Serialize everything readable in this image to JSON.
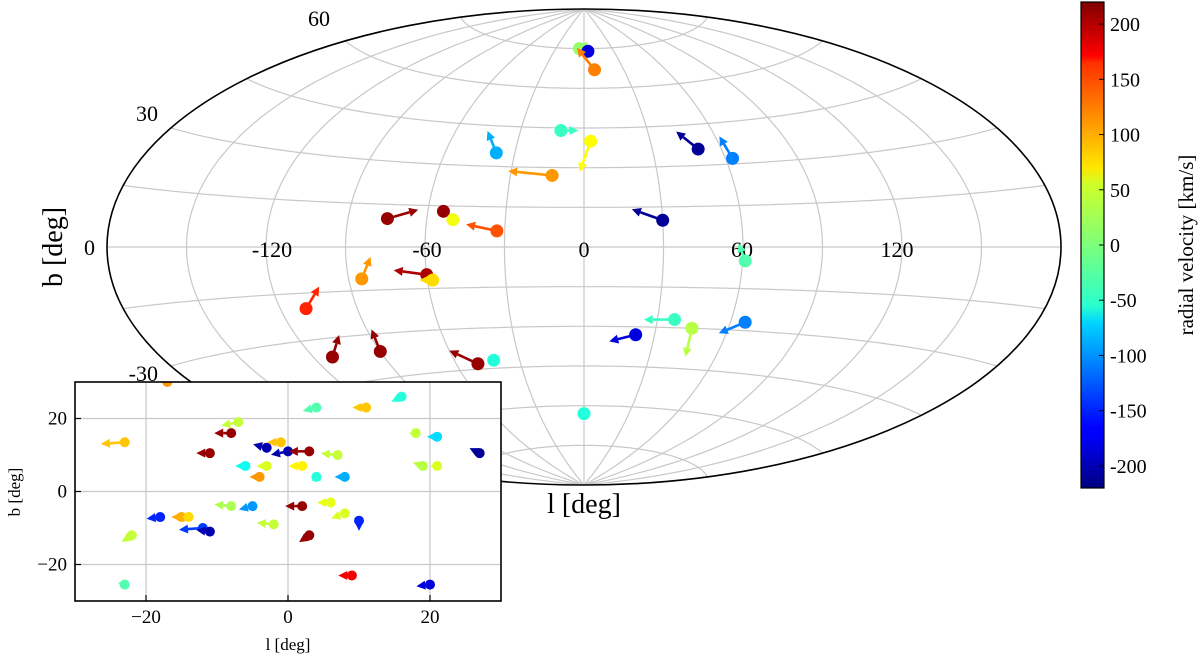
{
  "chart_data": [
    {
      "type": "scatter",
      "name": "main-aitoff",
      "projection": "aitoff",
      "xlabel": "l [deg]",
      "ylabel": "b [deg]",
      "x_ticks": [
        "-120",
        "-60",
        "0",
        "60",
        "120"
      ],
      "y_ticks": [
        "60",
        "30",
        "0",
        "-30"
      ],
      "grid": true,
      "points": [
        {
          "l": -5,
          "b": 75,
          "pml": 4,
          "pmb": 3,
          "rv": 10
        },
        {
          "l": 4,
          "b": 74,
          "pml": 0,
          "pmb": 0,
          "rv": -180
        },
        {
          "l": 8,
          "b": 67,
          "pml": -8,
          "pmb": 10,
          "rv": 110
        },
        {
          "l": -11,
          "b": 44,
          "pml": 8,
          "pmb": 0,
          "rv": -30
        },
        {
          "l": 3,
          "b": 40,
          "pml": -5,
          "pmb": -14,
          "rv": 55
        },
        {
          "l": -38,
          "b": 35,
          "pml": -4,
          "pmb": 10,
          "rv": -90
        },
        {
          "l": 50,
          "b": 36,
          "pml": -10,
          "pmb": 8,
          "rv": -210
        },
        {
          "l": 63,
          "b": 32,
          "pml": -6,
          "pmb": 10,
          "rv": -110
        },
        {
          "l": -13,
          "b": 27,
          "pml": -20,
          "pmb": 2,
          "rv": 100
        },
        {
          "l": -75,
          "b": 10,
          "pml": 14,
          "pmb": 4,
          "rv": 210
        },
        {
          "l": -54,
          "b": 13,
          "pml": 0,
          "pmb": 0,
          "rv": 210
        },
        {
          "l": -50,
          "b": 10,
          "pml": 0,
          "pmb": 0,
          "rv": 50
        },
        {
          "l": -33,
          "b": 6,
          "pml": -14,
          "pmb": 3,
          "rv": 130
        },
        {
          "l": 30,
          "b": 10,
          "pml": -14,
          "pmb": 5,
          "rv": -210
        },
        {
          "l": -85,
          "b": -11,
          "pml": 4,
          "pmb": 10,
          "rv": 100
        },
        {
          "l": -60,
          "b": -10,
          "pml": -15,
          "pmb": 2,
          "rv": 200
        },
        {
          "l": -58,
          "b": -12,
          "pml": -6,
          "pmb": 0,
          "rv": 70
        },
        {
          "l": -110,
          "b": -20,
          "pml": 6,
          "pmb": 10,
          "rv": 150
        },
        {
          "l": -112,
          "b": -36,
          "pml": 3,
          "pmb": 10,
          "rv": 210
        },
        {
          "l": -90,
          "b": -36,
          "pml": -4,
          "pmb": 10,
          "rv": 210
        },
        {
          "l": -50,
          "b": -43,
          "pml": -13,
          "pmb": 6,
          "rv": 210
        },
        {
          "l": -42,
          "b": -42,
          "pml": 0,
          "pmb": 0,
          "rv": -40
        },
        {
          "l": 22,
          "b": -33,
          "pml": -12,
          "pmb": -3,
          "rv": -180
        },
        {
          "l": 37,
          "b": -27,
          "pml": -14,
          "pmb": 0,
          "rv": -30
        },
        {
          "l": 45,
          "b": -30,
          "pml": -3,
          "pmb": -13,
          "rv": 25
        },
        {
          "l": 66,
          "b": -27,
          "pml": -12,
          "pmb": -5,
          "rv": -110
        },
        {
          "l": 61,
          "b": -5,
          "pml": -3,
          "pmb": 8,
          "rv": -20
        },
        {
          "l": 0,
          "b": -63,
          "pml": 0,
          "pmb": 0,
          "rv": -40
        }
      ],
      "colorbar": {
        "label": "radial velocity [km/s]",
        "min": -220,
        "max": 220,
        "ticks": [
          "200",
          "150",
          "100",
          "50",
          "0",
          "-50",
          "-100",
          "-150",
          "-200"
        ],
        "tick_values": [
          200,
          150,
          100,
          50,
          0,
          -50,
          -100,
          -150,
          -200
        ]
      }
    },
    {
      "type": "scatter",
      "name": "inset-zoom",
      "xlabel": "l [deg]",
      "ylabel": "b [deg]",
      "xlim": [
        -30,
        30
      ],
      "ylim": [
        -30,
        30
      ],
      "x_ticks": [
        "−20",
        "0",
        "20"
      ],
      "y_ticks": [
        "20",
        "0",
        "−20"
      ],
      "x_tick_values": [
        -20,
        0,
        20
      ],
      "y_tick_values": [
        20,
        0,
        -20
      ],
      "grid": true,
      "points": [
        {
          "l": -17,
          "b": 30,
          "pml": 0,
          "pmb": 0,
          "rv": 100
        },
        {
          "l": -23,
          "b": 13.5,
          "pml": -7,
          "pmb": -0.5,
          "rv": 80
        },
        {
          "l": -7,
          "b": 19,
          "pml": -5,
          "pmb": -1,
          "rv": 30
        },
        {
          "l": 4,
          "b": 23,
          "pml": -4,
          "pmb": -1,
          "rv": -20
        },
        {
          "l": 11,
          "b": 23,
          "pml": -4,
          "pmb": 0,
          "rv": 80
        },
        {
          "l": 16,
          "b": 26,
          "pml": -3,
          "pmb": -1.5,
          "rv": -40
        },
        {
          "l": 18,
          "b": 16,
          "pml": -2,
          "pmb": 0,
          "rv": 30
        },
        {
          "l": 21,
          "b": 15,
          "pml": -3,
          "pmb": 0,
          "rv": -70
        },
        {
          "l": 27,
          "b": 10.5,
          "pml": -3,
          "pmb": 1.5,
          "rv": -210
        },
        {
          "l": 19,
          "b": 7,
          "pml": -3,
          "pmb": 1,
          "rv": 25
        },
        {
          "l": 21,
          "b": 7,
          "pml": -2,
          "pmb": 0,
          "rv": 40
        },
        {
          "l": -8,
          "b": 16,
          "pml": -5,
          "pmb": 0,
          "rv": 210
        },
        {
          "l": -11,
          "b": 10.5,
          "pml": -4,
          "pmb": 0,
          "rv": 210
        },
        {
          "l": -3,
          "b": 12,
          "pml": -4,
          "pmb": 1,
          "rv": -200
        },
        {
          "l": -1,
          "b": 13.5,
          "pml": -4,
          "pmb": 0,
          "rv": 80
        },
        {
          "l": 0,
          "b": 11,
          "pml": -5,
          "pmb": -1,
          "rv": -200
        },
        {
          "l": 3,
          "b": 11,
          "pml": -6,
          "pmb": 0,
          "rv": 210
        },
        {
          "l": 7,
          "b": 10,
          "pml": -5,
          "pmb": 0.5,
          "rv": 30
        },
        {
          "l": -3,
          "b": 7,
          "pml": -3,
          "pmb": 0,
          "rv": 40
        },
        {
          "l": -4,
          "b": 4,
          "pml": -3,
          "pmb": 0,
          "rv": 100
        },
        {
          "l": -6,
          "b": 7,
          "pml": -3,
          "pmb": 0,
          "rv": -50
        },
        {
          "l": 2,
          "b": 7,
          "pml": -4,
          "pmb": 0,
          "rv": 60
        },
        {
          "l": 4,
          "b": 4,
          "pml": 0,
          "pmb": 1.5,
          "rv": -40
        },
        {
          "l": 8,
          "b": 4,
          "pml": -3,
          "pmb": 0,
          "rv": -90
        },
        {
          "l": -8,
          "b": -4,
          "pml": -5,
          "pmb": 0.5,
          "rv": 20
        },
        {
          "l": -15,
          "b": -7,
          "pml": -3,
          "pmb": 0,
          "rv": 90
        },
        {
          "l": -18,
          "b": -7,
          "pml": -4,
          "pmb": -0.5,
          "rv": -150
        },
        {
          "l": -14,
          "b": -7,
          "pml": -2,
          "pmb": 0,
          "rv": 70
        },
        {
          "l": -5,
          "b": -4,
          "pml": -4,
          "pmb": -1,
          "rv": -100
        },
        {
          "l": 2,
          "b": -4,
          "pml": -5,
          "pmb": 0,
          "rv": 210
        },
        {
          "l": 6,
          "b": -3,
          "pml": -4,
          "pmb": 0,
          "rv": 45
        },
        {
          "l": 8,
          "b": -6,
          "pml": -4,
          "pmb": -1.5,
          "rv": 40
        },
        {
          "l": -12,
          "b": -10,
          "pml": -7,
          "pmb": -0.5,
          "rv": -140
        },
        {
          "l": -11,
          "b": -11,
          "pml": -4,
          "pmb": 0.5,
          "rv": -200
        },
        {
          "l": -2,
          "b": -9,
          "pml": -5,
          "pmb": 0.5,
          "rv": 30
        },
        {
          "l": 10,
          "b": -8,
          "pml": 0,
          "pmb": -3,
          "rv": -150
        },
        {
          "l": 3,
          "b": -12,
          "pml": -3,
          "pmb": -2,
          "rv": 210
        },
        {
          "l": -22,
          "b": -12,
          "pml": -3,
          "pmb": -2,
          "rv": 30
        },
        {
          "l": 9,
          "b": -23,
          "pml": -4,
          "pmb": 0,
          "rv": 170
        },
        {
          "l": 20,
          "b": -25.5,
          "pml": -4,
          "pmb": -0.5,
          "rv": -180
        },
        {
          "l": -23,
          "b": -25.5,
          "pml": -2,
          "pmb": 0.5,
          "rv": -20
        }
      ]
    }
  ]
}
